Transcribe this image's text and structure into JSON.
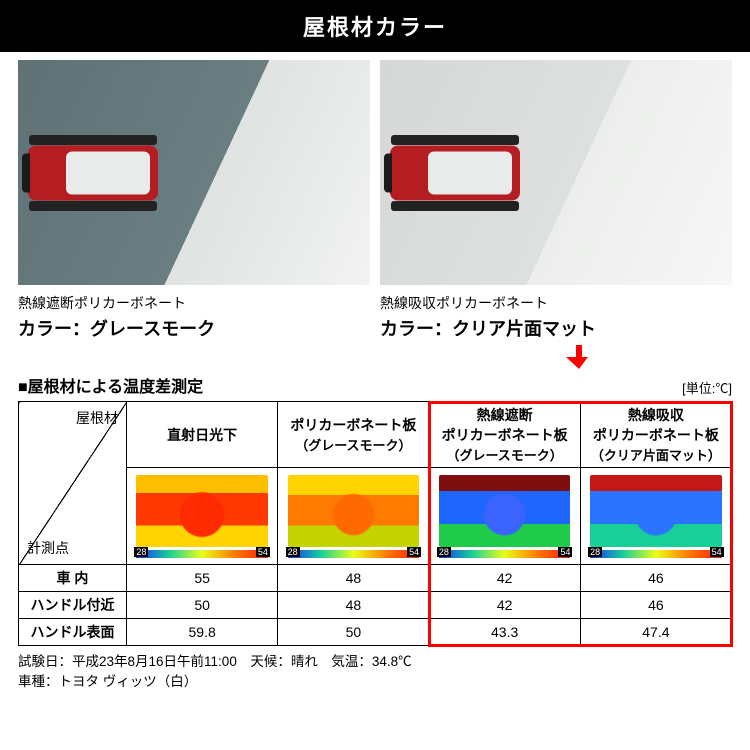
{
  "header": "屋根材カラー",
  "cards": [
    {
      "subtitle": "熱線遮断ポリカーボネート",
      "title": "カラー：グレースモーク",
      "swatch": "gray"
    },
    {
      "subtitle": "熱線吸収ポリカーボネート",
      "title": "カラー：クリア片面マット",
      "swatch": "clear"
    }
  ],
  "arrow_color": "#ff0000",
  "table": {
    "title": "■屋根材による温度差測定",
    "unit": "[単位:℃]",
    "diag_top": "屋根材",
    "diag_bottom": "計測点",
    "columns": [
      {
        "l1": "直射日光下",
        "l2": "",
        "thermal": "t-hot"
      },
      {
        "l1": "ポリカーボネート板",
        "l2": "（グレースモーク）",
        "thermal": "t-warm"
      },
      {
        "l1": "熱線遮断",
        "l2a": "ポリカーボネート板",
        "l2": "（グレースモーク）",
        "thermal": "t-mid",
        "highlight": true
      },
      {
        "l1": "熱線吸収",
        "l2a": "ポリカーボネート板",
        "l2": "（クリア片面マット）",
        "thermal": "t-cool",
        "highlight": true
      }
    ],
    "scale_lo": "28",
    "scale_hi": "54",
    "rows": [
      {
        "label": "車 内",
        "v": [
          "55",
          "48",
          "42",
          "46"
        ]
      },
      {
        "label": "ハンドル付近",
        "v": [
          "50",
          "48",
          "42",
          "46"
        ]
      },
      {
        "label": "ハンドル表面",
        "v": [
          "59.8",
          "50",
          "43.3",
          "47.4"
        ]
      }
    ],
    "highlight_color": "#ff0000"
  },
  "footnote": {
    "l1": "試験日：平成23年8月16日午前11:00　天候：晴れ　気温：34.8℃",
    "l2": "車種：トヨタ ヴィッツ（白）"
  }
}
